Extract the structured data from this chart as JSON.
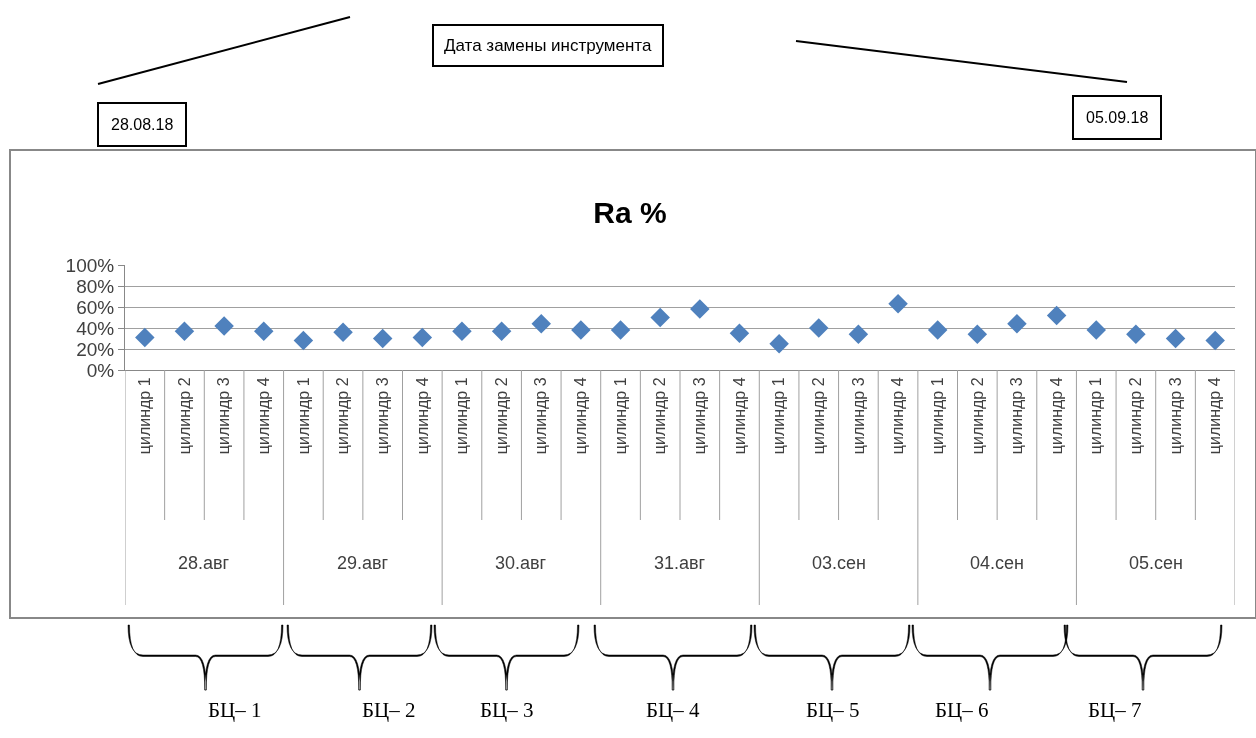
{
  "chart_data": {
    "type": "scatter",
    "title": "Ra %",
    "categories": [
      "цилиндр 1",
      "цилиндр 2",
      "цилиндр 3",
      "цилиндр 4",
      "цилиндр 1",
      "цилиндр 2",
      "цилиндр 3",
      "цилиндр 4",
      "цилиндр 1",
      "цилиндр 2",
      "цилиндр 3",
      "цилиндр 4",
      "цилиндр 1",
      "цилиндр 2",
      "цилиндр 3",
      "цилиндр 4",
      "цилиндр 1",
      "цилиндр 2",
      "цилиндр 3",
      "цилиндр 4",
      "цилиндр 1",
      "цилиндр 2",
      "цилиндр 3",
      "цилиндр 4",
      "цилиндр 1",
      "цилиндр 2",
      "цилиндр 3",
      "цилиндр 4"
    ],
    "series": [
      {
        "color": "#4f81bd",
        "values": [
          31,
          37,
          42,
          37,
          28,
          36,
          30,
          31,
          37,
          37,
          44,
          38,
          38,
          50,
          58,
          35,
          25,
          40,
          34,
          63,
          38,
          34,
          44,
          52,
          38,
          34,
          30,
          28
        ]
      }
    ],
    "ylim": [
      0,
      100
    ],
    "yticks": [
      {
        "value": 0,
        "label": "0%"
      },
      {
        "value": 20,
        "label": "20%"
      },
      {
        "value": 40,
        "label": "40%"
      },
      {
        "value": 60,
        "label": "60%"
      },
      {
        "value": 80,
        "label": "80%"
      },
      {
        "value": 100,
        "label": "100%"
      }
    ],
    "grid": "y",
    "marker": "diamond",
    "annotations": [
      "Дата замены инструмента",
      "28.08.18",
      "05.09.18",
      "28.авг",
      "29.авг",
      "30.авг",
      "31.авг",
      "03.сен",
      "04.сен",
      "05.сен",
      "БЦ– 1",
      "БЦ– 2",
      "БЦ– 3",
      "БЦ– 4",
      "БЦ– 5",
      "БЦ– 6",
      "БЦ– 7"
    ]
  }
}
